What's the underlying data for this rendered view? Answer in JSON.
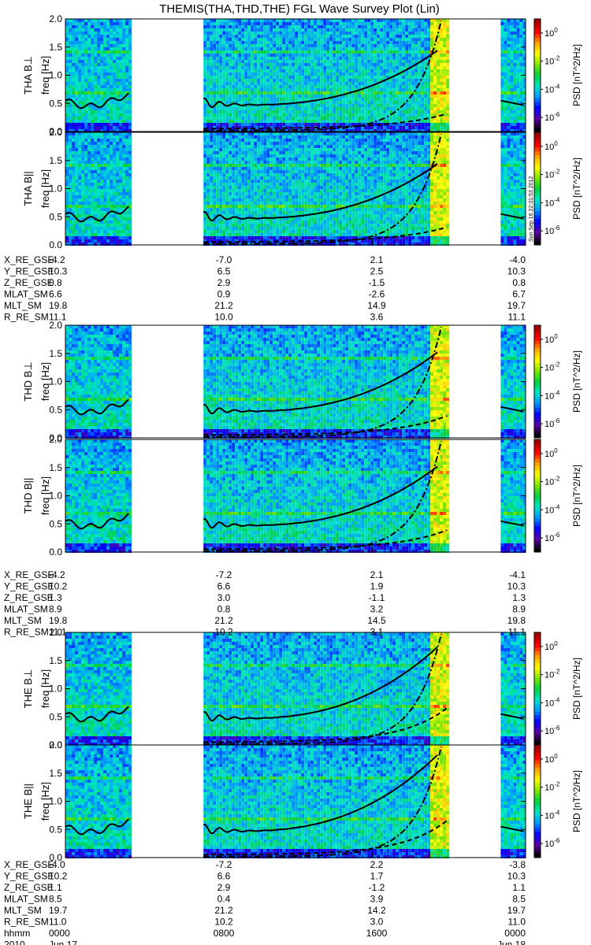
{
  "title": "THEMIS(THA,THD,THE) FGL Wave Survey Plot (Lin)",
  "colors": {
    "colorbar": [
      "#000000",
      "#5a00a0",
      "#0000ff",
      "#0096ff",
      "#00e6c8",
      "#00d040",
      "#7fe600",
      "#ffff00",
      "#ffa000",
      "#ff0000",
      "#a00000"
    ],
    "curve": "#000000"
  },
  "chart_data": {
    "type": "heatmap",
    "x_time_range": [
      "2010-06-17 00:00",
      "2010-06-18 00:00"
    ],
    "x_ticks": [
      "0000",
      "0800",
      "1600",
      "0000"
    ],
    "x_tick_dates": [
      "Jun 17",
      "",
      "",
      "Jun 18"
    ],
    "time_row_labels": [
      "hhmm",
      "2010"
    ],
    "ylim": [
      0,
      2.0
    ],
    "y_ticks": [
      "0.0",
      "0.5",
      "1.0",
      "1.5",
      "2.0"
    ],
    "colorbar": {
      "label": "PSD [nT^2/Hz]",
      "scale": "log",
      "ticks": [
        "10^-6",
        "10^-4",
        "10^-2",
        "10^0"
      ],
      "range": [
        1e-07,
        10.0
      ]
    },
    "data_intervals_hours": [
      [
        0.0,
        3.4
      ],
      [
        7.2,
        20.0
      ],
      [
        22.7,
        24.0
      ]
    ],
    "panels": [
      {
        "probe": "THA",
        "title_line": "THA B⊥",
        "ylabel": "freq [Hz]"
      },
      {
        "probe": "THA",
        "title_line": "THA B||",
        "ylabel": "freq [Hz]"
      },
      {
        "probe": "THD",
        "title_line": "THD B⊥",
        "ylabel": "freq [Hz]"
      },
      {
        "probe": "THD",
        "title_line": "THD B||",
        "ylabel": "freq [Hz]"
      },
      {
        "probe": "THE",
        "title_line": "THE B⊥",
        "ylabel": "freq [Hz]"
      },
      {
        "probe": "THE",
        "title_line": "THE B||",
        "ylabel": "freq [Hz]"
      }
    ],
    "ephemeris": [
      {
        "probe": "THA",
        "rows": [
          {
            "label": "X_RE_GSE",
            "values": [
              "-4.2",
              "-7.0",
              "2.1",
              "-4.0"
            ]
          },
          {
            "label": "Y_RE_GSE",
            "values": [
              "10.3",
              "6.5",
              "2.5",
              "10.3"
            ]
          },
          {
            "label": "Z_RE_GSE",
            "values": [
              "0.8",
              "2.9",
              "-1.5",
              "0.8"
            ]
          },
          {
            "label": "MLAT_SM",
            "values": [
              "6.6",
              "0.9",
              "-2.6",
              "6.7"
            ]
          },
          {
            "label": "MLT_SM",
            "values": [
              "19.8",
              "21.2",
              "14.9",
              "19.7"
            ]
          },
          {
            "label": "R_RE_SM",
            "values": [
              "11.1",
              "10.0",
              "3.6",
              "11.1"
            ]
          }
        ]
      },
      {
        "probe": "THD",
        "rows": [
          {
            "label": "X_RE_GSE",
            "values": [
              "-4.2",
              "-7.2",
              "2.1",
              "-4.1"
            ]
          },
          {
            "label": "Y_RE_GSE",
            "values": [
              "10.2",
              "6.6",
              "1.9",
              "10.3"
            ]
          },
          {
            "label": "Z_RE_GSE",
            "values": [
              "1.3",
              "3.0",
              "-1.1",
              "1.3"
            ]
          },
          {
            "label": "MLAT_SM",
            "values": [
              "8.9",
              "0.8",
              "3.2",
              "8.9"
            ]
          },
          {
            "label": "MLT_SM",
            "values": [
              "19.8",
              "21.2",
              "14.5",
              "19.8"
            ]
          },
          {
            "label": "R_RE_SM",
            "values": [
              "11.1",
              "10.2",
              "3.1",
              "11.1"
            ]
          }
        ]
      },
      {
        "probe": "THE",
        "rows": [
          {
            "label": "X_RE_GSE",
            "values": [
              "-4.0",
              "-7.2",
              "2.2",
              "-3.8"
            ]
          },
          {
            "label": "Y_RE_GSE",
            "values": [
              "10.2",
              "6.6",
              "1.7",
              "10.3"
            ]
          },
          {
            "label": "Z_RE_GSE",
            "values": [
              "1.1",
              "2.9",
              "-1.2",
              "1.1"
            ]
          },
          {
            "label": "MLAT_SM",
            "values": [
              "8.5",
              "0.4",
              "3.9",
              "8.5"
            ]
          },
          {
            "label": "MLT_SM",
            "values": [
              "19.7",
              "21.2",
              "14.2",
              "19.7"
            ]
          },
          {
            "label": "R_RE_SM",
            "values": [
              "11.0",
              "10.2",
              "3.0",
              "11.0"
            ]
          }
        ]
      }
    ],
    "colorbar_side_text": "Sun Sep 16 22:31:53 2012"
  }
}
